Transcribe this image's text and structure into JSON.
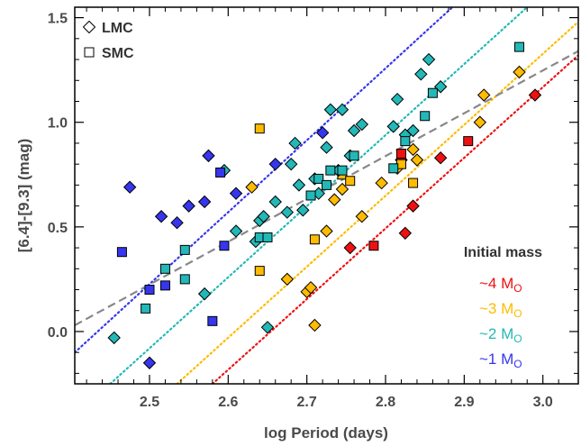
{
  "chart_data": {
    "type": "scatter",
    "xlabel": "log Period (days)",
    "ylabel": "[6.4]-[9.3] (mag)",
    "xlim": [
      2.405,
      3.045
    ],
    "ylim": [
      -0.25,
      1.55
    ],
    "xticks": [
      "2.5",
      "2.6",
      "2.7",
      "2.8",
      "2.9",
      "3.0"
    ],
    "yticks": [
      "0.0",
      "0.5",
      "1.0",
      "1.5"
    ],
    "grid": false,
    "marker_legend": {
      "position": "top-left",
      "items": [
        {
          "shape": "diamond",
          "label": "LMC"
        },
        {
          "shape": "square",
          "label": "SMC"
        }
      ]
    },
    "mass_legend": {
      "position": "bottom-right",
      "title": "Initial mass",
      "unit": "M",
      "unit_sub": "O",
      "items": [
        {
          "key": "4",
          "label": "~4",
          "color": "#ee1111"
        },
        {
          "key": "3",
          "label": "~3",
          "color": "#ffbb00"
        },
        {
          "key": "2",
          "label": "~2",
          "color": "#22b8b8"
        },
        {
          "key": "1",
          "label": "~1",
          "color": "#3636ee"
        }
      ]
    },
    "fit_lines": [
      {
        "key": "4",
        "style": "dotted",
        "color": "#ee1111",
        "points": [
          [
            2.58,
            -0.25
          ],
          [
            3.045,
            1.32
          ]
        ]
      },
      {
        "key": "3",
        "style": "dotted",
        "color": "#ffbb00",
        "points": [
          [
            2.535,
            -0.25
          ],
          [
            3.045,
            1.48
          ]
        ]
      },
      {
        "key": "2",
        "style": "dotted",
        "color": "#22b8b8",
        "points": [
          [
            2.45,
            -0.25
          ],
          [
            2.98,
            1.55
          ]
        ]
      },
      {
        "key": "1",
        "style": "dotted",
        "color": "#3636ee",
        "points": [
          [
            2.405,
            -0.1
          ],
          [
            2.885,
            1.55
          ]
        ]
      },
      {
        "key": "all",
        "style": "dashed",
        "color": "#888888",
        "points": [
          [
            2.405,
            0.03
          ],
          [
            3.045,
            1.34
          ]
        ]
      }
    ],
    "series": [
      {
        "key": "4",
        "name": "~4 M",
        "diamond": [
          [
            2.755,
            0.4
          ],
          [
            2.82,
            0.82
          ],
          [
            2.825,
            0.47
          ],
          [
            2.835,
            0.6
          ],
          [
            2.87,
            0.83
          ],
          [
            2.99,
            1.13
          ]
        ],
        "square": [
          [
            2.785,
            0.41
          ],
          [
            2.82,
            0.85
          ],
          [
            2.905,
            0.91
          ]
        ]
      },
      {
        "key": "3",
        "name": "~3 M",
        "diamond": [
          [
            2.63,
            0.69
          ],
          [
            2.675,
            0.25
          ],
          [
            2.7,
            0.19
          ],
          [
            2.705,
            0.21
          ],
          [
            2.71,
            0.03
          ],
          [
            2.725,
            0.48
          ],
          [
            2.735,
            0.63
          ],
          [
            2.745,
            0.68
          ],
          [
            2.77,
            0.55
          ],
          [
            2.795,
            0.71
          ],
          [
            2.815,
            0.78
          ],
          [
            2.835,
            0.87
          ],
          [
            2.84,
            0.82
          ],
          [
            2.92,
            1.0
          ],
          [
            2.925,
            1.13
          ],
          [
            2.97,
            1.24
          ]
        ],
        "square": [
          [
            2.64,
            0.97
          ],
          [
            2.64,
            0.29
          ],
          [
            2.71,
            0.44
          ],
          [
            2.745,
            0.75
          ],
          [
            2.755,
            0.72
          ],
          [
            2.82,
            0.8
          ],
          [
            2.835,
            0.71
          ]
        ]
      },
      {
        "key": "2",
        "name": "~2 M",
        "diamond": [
          [
            2.455,
            -0.03
          ],
          [
            2.57,
            0.18
          ],
          [
            2.595,
            0.77
          ],
          [
            2.61,
            0.48
          ],
          [
            2.635,
            0.43
          ],
          [
            2.64,
            0.53
          ],
          [
            2.645,
            0.55
          ],
          [
            2.65,
            0.02
          ],
          [
            2.66,
            0.62
          ],
          [
            2.675,
            0.57
          ],
          [
            2.68,
            0.8
          ],
          [
            2.685,
            0.9
          ],
          [
            2.69,
            0.7
          ],
          [
            2.695,
            0.58
          ],
          [
            2.71,
            0.73
          ],
          [
            2.715,
            0.66
          ],
          [
            2.725,
            0.88
          ],
          [
            2.73,
            1.06
          ],
          [
            2.74,
            0.77
          ],
          [
            2.745,
            1.06
          ],
          [
            2.755,
            0.84
          ],
          [
            2.76,
            0.96
          ],
          [
            2.77,
            0.99
          ],
          [
            2.81,
            0.98
          ],
          [
            2.815,
            1.11
          ],
          [
            2.825,
            0.94
          ],
          [
            2.835,
            0.96
          ],
          [
            2.845,
            1.23
          ],
          [
            2.855,
            1.3
          ],
          [
            2.87,
            1.17
          ]
        ],
        "square": [
          [
            2.495,
            0.11
          ],
          [
            2.52,
            0.3
          ],
          [
            2.545,
            0.25
          ],
          [
            2.545,
            0.39
          ],
          [
            2.64,
            0.45
          ],
          [
            2.65,
            0.45
          ],
          [
            2.705,
            0.65
          ],
          [
            2.715,
            0.73
          ],
          [
            2.725,
            0.7
          ],
          [
            2.73,
            0.77
          ],
          [
            2.745,
            0.77
          ],
          [
            2.76,
            0.84
          ],
          [
            2.81,
            0.78
          ],
          [
            2.825,
            0.91
          ],
          [
            2.85,
            1.03
          ],
          [
            2.86,
            1.14
          ],
          [
            2.97,
            1.36
          ]
        ]
      },
      {
        "key": "1",
        "name": "~1 M",
        "diamond": [
          [
            2.475,
            0.69
          ],
          [
            2.5,
            -0.15
          ],
          [
            2.515,
            0.55
          ],
          [
            2.535,
            0.52
          ],
          [
            2.55,
            0.6
          ],
          [
            2.57,
            0.62
          ],
          [
            2.575,
            0.84
          ],
          [
            2.61,
            0.66
          ],
          [
            2.66,
            0.8
          ],
          [
            2.72,
            0.95
          ]
        ],
        "square": [
          [
            2.465,
            0.38
          ],
          [
            2.5,
            0.2
          ],
          [
            2.52,
            0.22
          ],
          [
            2.58,
            0.05
          ],
          [
            2.59,
            0.76
          ],
          [
            2.595,
            0.41
          ]
        ]
      }
    ]
  }
}
